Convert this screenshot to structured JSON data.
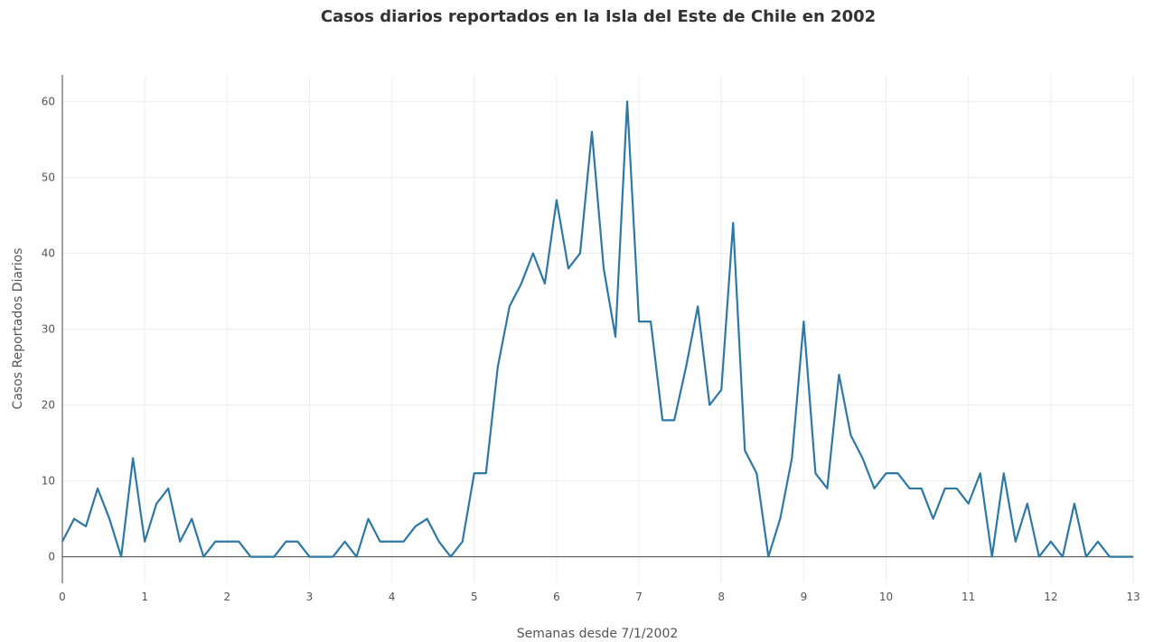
{
  "chart_data": {
    "type": "line",
    "title": "Casos diarios reportados en la Isla del Este de Chile en 2002",
    "xlabel": "Semanas desde 7/1/2002",
    "ylabel": "Casos Reportados Diarios",
    "xlim": [
      0,
      13
    ],
    "ylim": [
      -3.5,
      63.5
    ],
    "xticks": [
      0,
      1,
      2,
      3,
      4,
      5,
      6,
      7,
      8,
      9,
      10,
      11,
      12,
      13
    ],
    "yticks": [
      0,
      10,
      20,
      30,
      40,
      50,
      60
    ],
    "grid": true,
    "line_color": "#2e78a6",
    "series": [
      {
        "values": [
          2,
          5,
          4,
          9,
          5,
          0,
          13,
          2,
          7,
          9,
          2,
          5,
          0,
          2,
          2,
          2,
          0,
          0,
          0,
          2,
          2,
          0,
          0,
          0,
          2,
          0,
          5,
          2,
          2,
          2,
          4,
          5,
          2,
          0,
          2,
          11,
          11,
          25,
          33,
          36,
          40,
          36,
          47,
          38,
          40,
          56,
          38,
          29,
          60,
          31,
          31,
          18,
          18,
          25,
          33,
          20,
          22,
          44,
          14,
          11,
          0,
          5,
          13,
          31,
          11,
          9,
          24,
          16,
          13,
          9,
          11,
          11,
          9,
          9,
          5,
          9,
          9,
          7,
          11,
          0,
          11,
          2,
          7,
          0,
          2,
          0,
          7,
          0,
          2,
          0,
          0,
          0
        ]
      }
    ]
  }
}
